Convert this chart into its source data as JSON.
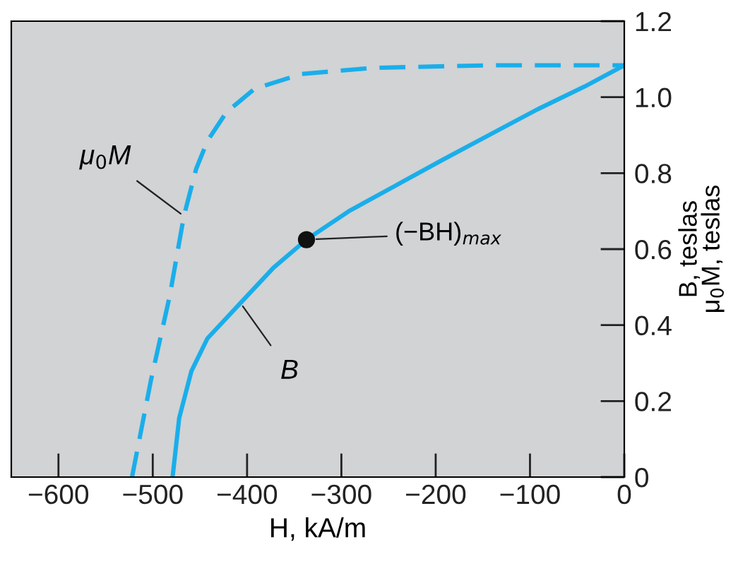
{
  "chart_data": {
    "type": "line",
    "xlabel": "H, kA/m",
    "ylabel": "B, teslas\nμ$_{0}$M, teslas",
    "xlim": [
      -650,
      0
    ],
    "ylim": [
      0,
      1.2
    ],
    "xticks": [
      {
        "value": -600,
        "label": "−600"
      },
      {
        "value": -500,
        "label": "−500"
      },
      {
        "value": -400,
        "label": "−400"
      },
      {
        "value": -300,
        "label": "−300"
      },
      {
        "value": -200,
        "label": "−200"
      },
      {
        "value": -100,
        "label": "−100"
      },
      0
    ],
    "yticks": [
      0,
      0.2,
      0.4,
      0.6,
      0.8,
      {
        "value": 1.0,
        "label": "1.0"
      },
      1.2
    ],
    "grid": false,
    "legend": false,
    "series": [
      {
        "name": "μ$_{0}$M",
        "color": "#1aaeea",
        "line_style": "dashed",
        "x": [
          -522,
          -502,
          -482,
          -467,
          -454,
          -442,
          -422,
          -392,
          -342,
          -267,
          -142,
          0
        ],
        "values": [
          0,
          0.254,
          0.477,
          0.687,
          0.811,
          0.885,
          0.96,
          1.022,
          1.061,
          1.077,
          1.084,
          1.084
        ]
      },
      {
        "name": "B",
        "color": "#1aaeea",
        "line_style": "solid",
        "x": [
          -479,
          -472,
          -459,
          -442,
          -407,
          -372,
          -337,
          -292,
          -242,
          -192,
          -142,
          -92,
          -42,
          0
        ],
        "values": [
          0,
          0.155,
          0.279,
          0.365,
          0.458,
          0.551,
          0.625,
          0.7,
          0.768,
          0.836,
          0.902,
          0.968,
          1.028,
          1.084
        ]
      },
      {
        "type": "scatter",
        "color": "#111111",
        "x": [
          -337
        ],
        "values": [
          0.625
        ]
      }
    ],
    "annotations": [
      {
        "text": "(−BH)$_{max}$",
        "x": -337,
        "y": 0.625
      }
    ]
  }
}
